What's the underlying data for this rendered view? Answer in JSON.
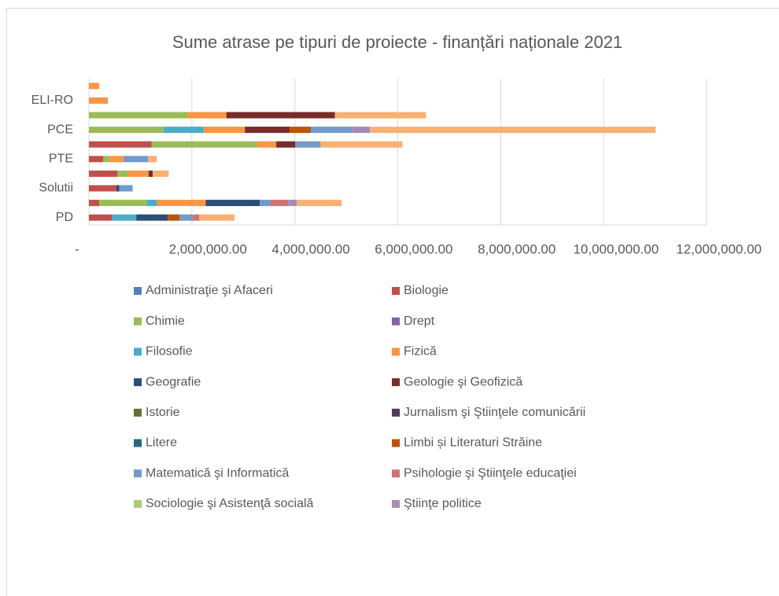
{
  "chart_data": {
    "type": "bar",
    "orientation": "horizontal",
    "stacked": true,
    "title": "Sume atrase pe tipuri de proiecte - finanțări naționale 2021",
    "categories": [
      "PD",
      null,
      "Solutii",
      null,
      "PTE",
      null,
      "PCE",
      null,
      "ELI-RO",
      null
    ],
    "xlim": [
      0,
      12000000
    ],
    "xticks": [
      {
        "value": 0,
        "label": "-"
      },
      {
        "value": 2000000,
        "label": "2,000,000.00"
      },
      {
        "value": 4000000,
        "label": "4,000,000.00"
      },
      {
        "value": 6000000,
        "label": "6,000,000.00"
      },
      {
        "value": 8000000,
        "label": "8,000,000.00"
      },
      {
        "value": 10000000,
        "label": "10,000,000.00"
      },
      {
        "value": 12000000,
        "label": "12,000,000.00"
      }
    ],
    "grid": true,
    "legend": "bottom",
    "series": [
      {
        "name": "Administraţie şi Afaceri",
        "color": "#4F81BD",
        "values": [
          null,
          null,
          null,
          null,
          null,
          null,
          null,
          null,
          null,
          null
        ]
      },
      {
        "name": "Biologie",
        "color": "#C0504D",
        "values": [
          450000,
          200000,
          530000,
          550000,
          280000,
          1220000,
          null,
          null,
          null,
          null
        ]
      },
      {
        "name": "Chimie",
        "color": "#9BBB59",
        "values": [
          null,
          920000,
          null,
          210000,
          120000,
          2050000,
          1450000,
          1910000,
          null,
          null
        ]
      },
      {
        "name": "Drept",
        "color": "#8064A2",
        "values": [
          null,
          null,
          null,
          null,
          null,
          null,
          null,
          null,
          null,
          null
        ]
      },
      {
        "name": "Filosofie",
        "color": "#4BACC6",
        "values": [
          470000,
          200000,
          null,
          null,
          null,
          null,
          780000,
          null,
          null,
          null
        ]
      },
      {
        "name": "Fizică",
        "color": "#F79646",
        "values": [
          null,
          950000,
          null,
          400000,
          280000,
          370000,
          800000,
          760000,
          370000,
          200000
        ]
      },
      {
        "name": "Geografie",
        "color": "#2C4D75",
        "values": [
          610000,
          1050000,
          60000,
          null,
          null,
          null,
          null,
          null,
          null,
          null
        ]
      },
      {
        "name": "Geologie şi Geofizică",
        "color": "#772C2A",
        "values": [
          null,
          null,
          null,
          80000,
          null,
          370000,
          870000,
          2110000,
          null,
          null
        ]
      },
      {
        "name": "Istorie",
        "color": "#5F7530",
        "values": [
          null,
          null,
          null,
          null,
          null,
          null,
          null,
          null,
          null,
          null
        ]
      },
      {
        "name": "Jurnalism şi Ştiinţele comunicării",
        "color": "#4D3B62",
        "values": [
          null,
          null,
          null,
          null,
          null,
          null,
          null,
          null,
          null,
          null
        ]
      },
      {
        "name": "Litere",
        "color": "#276A7C",
        "values": [
          null,
          null,
          null,
          null,
          null,
          null,
          null,
          null,
          null,
          null
        ]
      },
      {
        "name": "Limbi și Literaturi Străine",
        "color": "#B65708",
        "values": [
          230000,
          null,
          null,
          null,
          null,
          null,
          410000,
          null,
          null,
          null
        ]
      },
      {
        "name": "Matematică şi Informatică",
        "color": "#729ACA",
        "values": [
          260000,
          200000,
          260000,
          null,
          470000,
          490000,
          800000,
          null,
          null,
          null
        ]
      },
      {
        "name": "Psihologie şi Ştiinţele educaţiei",
        "color": "#CD7371",
        "values": [
          120000,
          350000,
          null,
          null,
          null,
          null,
          null,
          null,
          null,
          null
        ]
      },
      {
        "name": "Sociologie şi Asistenţă socială",
        "color": "#AFC97A",
        "values": [
          null,
          null,
          null,
          null,
          null,
          null,
          null,
          null,
          null,
          null
        ]
      },
      {
        "name": "Ştiinţe politice",
        "color": "#A28DB5",
        "values": [
          null,
          170000,
          null,
          null,
          null,
          null,
          350000,
          null,
          null,
          null
        ]
      },
      {
        "name": null,
        "color": "#F9B074",
        "values": [
          690000,
          870000,
          null,
          310000,
          170000,
          1590000,
          5550000,
          1770000,
          null,
          null
        ]
      }
    ]
  }
}
